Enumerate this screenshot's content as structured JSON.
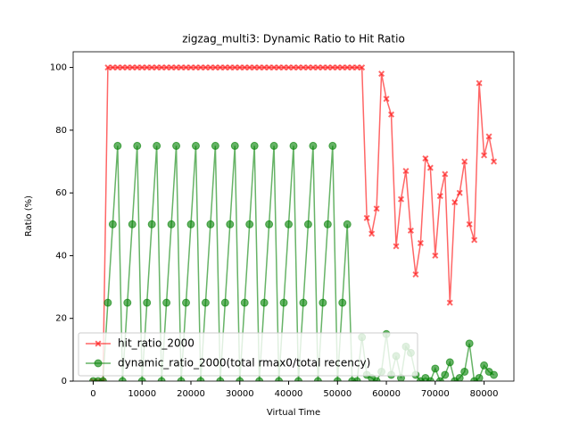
{
  "chart_data": {
    "type": "line",
    "title": "zigzag_multi3: Dynamic Ratio to Hit Ratio",
    "x_label": "Virtual Time",
    "y_label": "Ratio (%)",
    "x": [
      0,
      1000,
      2000,
      3000,
      4000,
      5000,
      6000,
      7000,
      8000,
      9000,
      10000,
      11000,
      12000,
      13000,
      14000,
      15000,
      16000,
      17000,
      18000,
      19000,
      20000,
      21000,
      22000,
      23000,
      24000,
      25000,
      26000,
      27000,
      28000,
      29000,
      30000,
      31000,
      32000,
      33000,
      34000,
      35000,
      36000,
      37000,
      38000,
      39000,
      40000,
      41000,
      42000,
      43000,
      44000,
      45000,
      46000,
      47000,
      48000,
      49000,
      50000,
      51000,
      52000,
      53000,
      54000,
      55000,
      56000,
      57000,
      58000,
      59000,
      60000,
      61000,
      62000,
      63000,
      64000,
      65000,
      66000,
      67000,
      68000,
      69000,
      70000,
      71000,
      72000,
      73000,
      74000,
      75000,
      76000,
      77000,
      78000,
      79000,
      80000,
      81000,
      82000
    ],
    "series": [
      {
        "name": "hit_ratio_2000",
        "color": "#ff0000",
        "marker": "X",
        "values": [
          0,
          0,
          0,
          100,
          100,
          100,
          100,
          100,
          100,
          100,
          100,
          100,
          100,
          100,
          100,
          100,
          100,
          100,
          100,
          100,
          100,
          100,
          100,
          100,
          100,
          100,
          100,
          100,
          100,
          100,
          100,
          100,
          100,
          100,
          100,
          100,
          100,
          100,
          100,
          100,
          100,
          100,
          100,
          100,
          100,
          100,
          100,
          100,
          100,
          100,
          100,
          100,
          100,
          100,
          100,
          100,
          52,
          47,
          55,
          98,
          90,
          85,
          43,
          58,
          67,
          48,
          34,
          44,
          71,
          68,
          40,
          59,
          66,
          25,
          57,
          60,
          70,
          50,
          45,
          95,
          72,
          78,
          70
        ]
      },
      {
        "name": "dynamic_ratio_2000(total rmax0/total recency)",
        "color": "#008000",
        "marker": "o",
        "values": [
          0,
          0,
          0,
          25,
          50,
          75,
          0,
          25,
          50,
          75,
          0,
          25,
          50,
          75,
          0,
          25,
          50,
          75,
          0,
          25,
          50,
          75,
          0,
          25,
          50,
          75,
          0,
          25,
          50,
          75,
          0,
          25,
          50,
          75,
          0,
          25,
          50,
          75,
          0,
          25,
          50,
          75,
          0,
          25,
          50,
          75,
          0,
          25,
          50,
          75,
          0,
          25,
          50,
          0,
          0,
          14,
          2,
          1,
          0,
          3,
          15,
          2,
          8,
          1,
          11,
          9,
          2,
          0,
          1,
          0,
          4,
          0,
          2,
          6,
          0,
          1,
          3,
          12,
          0,
          1,
          5,
          3,
          2
        ]
      }
    ],
    "xlim": [
      -4100,
      86100
    ],
    "ylim": [
      0,
      105
    ],
    "xticks": [
      0,
      10000,
      20000,
      30000,
      40000,
      50000,
      60000,
      70000,
      80000
    ],
    "yticks": [
      0,
      20,
      40,
      60,
      80,
      100
    ],
    "legend": "lower left"
  }
}
